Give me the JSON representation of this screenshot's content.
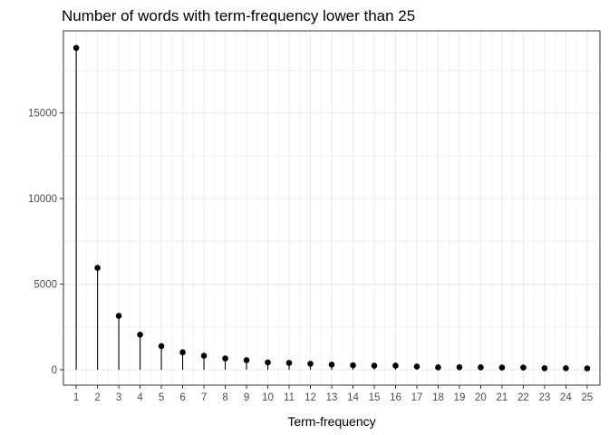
{
  "chart_data": {
    "type": "lollipop",
    "title": "Number of words with term-frequency lower than 25",
    "xlabel": "Term-frequency",
    "ylabel": "",
    "x": [
      1,
      2,
      3,
      4,
      5,
      6,
      7,
      8,
      9,
      10,
      11,
      12,
      13,
      14,
      15,
      16,
      17,
      18,
      19,
      20,
      21,
      22,
      23,
      24,
      25
    ],
    "values": [
      18800,
      5950,
      3150,
      2050,
      1380,
      1020,
      820,
      660,
      560,
      430,
      400,
      350,
      300,
      260,
      240,
      240,
      190,
      140,
      150,
      140,
      130,
      130,
      90,
      90,
      80
    ],
    "ylim": [
      -900,
      19800
    ],
    "yticks": [
      0,
      5000,
      10000,
      15000
    ],
    "ytick_labels": [
      "0",
      "5000",
      "10000",
      "15000"
    ],
    "xtick_labels": [
      "1",
      "2",
      "3",
      "4",
      "5",
      "6",
      "7",
      "8",
      "9",
      "10",
      "11",
      "12",
      "13",
      "14",
      "15",
      "16",
      "17",
      "18",
      "19",
      "20",
      "21",
      "22",
      "23",
      "24",
      "25"
    ],
    "grid": true,
    "marker_color": "#000000",
    "segment_color": "#000000",
    "grid_color": "#ebebeb",
    "panel_border_color": "#333333"
  }
}
